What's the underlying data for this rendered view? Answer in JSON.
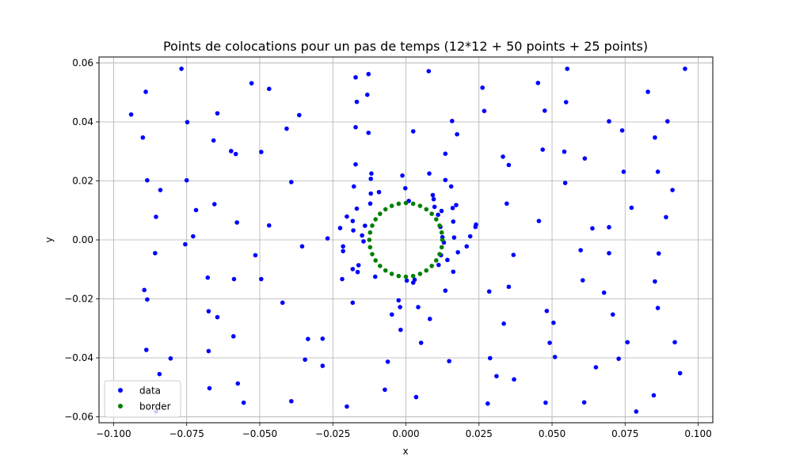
{
  "chart_data": {
    "type": "scatter",
    "title": "Points de colocations pour un pas de temps (12*12 + 50 points + 25 points)",
    "xlabel": "x",
    "ylabel": "y",
    "xlim": [
      -0.105,
      0.105
    ],
    "ylim": [
      -0.062,
      0.062
    ],
    "xticks": [
      -0.1,
      -0.075,
      -0.05,
      -0.025,
      0.0,
      0.025,
      0.05,
      0.075,
      0.1
    ],
    "xtick_labels": [
      "−0.100",
      "−0.075",
      "−0.050",
      "−0.025",
      "0.000",
      "0.025",
      "0.050",
      "0.075",
      "0.100"
    ],
    "yticks": [
      -0.06,
      -0.04,
      -0.02,
      0.0,
      0.02,
      0.04,
      0.06
    ],
    "ytick_labels": [
      "−0.06",
      "−0.04",
      "−0.02",
      "0.00",
      "0.02",
      "0.04",
      "0.06"
    ],
    "grid": true,
    "legend_position": "lower left",
    "series": [
      {
        "name": "data",
        "color": "#0000ff",
        "points": [
          [
            -0.094,
            0.0425
          ],
          [
            -0.09,
            0.0347
          ],
          [
            -0.089,
            0.0502
          ],
          [
            -0.0885,
            0.0202
          ],
          [
            -0.084,
            0.0169
          ],
          [
            -0.0855,
            0.0078
          ],
          [
            -0.0858,
            -0.0045
          ],
          [
            -0.0895,
            -0.017
          ],
          [
            -0.0885,
            -0.0202
          ],
          [
            -0.0888,
            -0.0373
          ],
          [
            -0.0843,
            -0.0455
          ],
          [
            -0.0805,
            -0.0402
          ],
          [
            -0.0855,
            -0.0582
          ],
          [
            -0.0768,
            0.058
          ],
          [
            -0.0748,
            0.0399
          ],
          [
            -0.075,
            0.0202
          ],
          [
            -0.0755,
            -0.0015
          ],
          [
            -0.0728,
            0.0012
          ],
          [
            -0.0718,
            0.0101
          ],
          [
            -0.0658,
            0.0337
          ],
          [
            -0.0655,
            0.0121
          ],
          [
            -0.0678,
            -0.0128
          ],
          [
            -0.0675,
            -0.0242
          ],
          [
            -0.0645,
            -0.0262
          ],
          [
            -0.0675,
            -0.0377
          ],
          [
            -0.0672,
            -0.0503
          ],
          [
            -0.0645,
            0.0429
          ],
          [
            -0.0598,
            0.0301
          ],
          [
            -0.0582,
            0.0291
          ],
          [
            -0.0578,
            0.0059
          ],
          [
            -0.0588,
            -0.0133
          ],
          [
            -0.059,
            -0.0327
          ],
          [
            -0.0575,
            -0.0487
          ],
          [
            -0.0555,
            -0.0552
          ],
          [
            -0.0528,
            0.0531
          ],
          [
            -0.0495,
            0.0298
          ],
          [
            -0.0515,
            -0.0052
          ],
          [
            -0.0495,
            -0.0133
          ],
          [
            -0.0468,
            0.0512
          ],
          [
            -0.0468,
            0.0049
          ],
          [
            -0.0422,
            -0.0213
          ],
          [
            -0.0408,
            0.0377
          ],
          [
            -0.0392,
            0.0196
          ],
          [
            -0.0392,
            -0.0547
          ],
          [
            -0.0365,
            0.0423
          ],
          [
            -0.0355,
            -0.0022
          ],
          [
            -0.0335,
            -0.0336
          ],
          [
            -0.0345,
            -0.0406
          ],
          [
            -0.0285,
            -0.0335
          ],
          [
            -0.0285,
            -0.0427
          ],
          [
            -0.0268,
            0.0005
          ],
          [
            -0.0225,
            0.004
          ],
          [
            -0.0215,
            -0.0022
          ],
          [
            -0.0215,
            -0.0038
          ],
          [
            -0.0218,
            -0.0133
          ],
          [
            -0.0202,
            0.0079
          ],
          [
            -0.0202,
            -0.0565
          ],
          [
            -0.0182,
            0.0064
          ],
          [
            -0.018,
            0.0032
          ],
          [
            -0.0182,
            -0.0099
          ],
          [
            -0.0182,
            -0.0213
          ],
          [
            -0.0178,
            0.0181
          ],
          [
            -0.0172,
            0.0551
          ],
          [
            -0.0172,
            0.0382
          ],
          [
            -0.0168,
            0.0468
          ],
          [
            -0.0172,
            0.0256
          ],
          [
            -0.0168,
            0.0106
          ],
          [
            -0.0162,
            -0.0086
          ],
          [
            -0.0165,
            -0.0109
          ],
          [
            -0.015,
            0.0015
          ],
          [
            -0.014,
            0.0048
          ],
          [
            -0.0145,
            -0.0005
          ],
          [
            -0.0128,
            0.0562
          ],
          [
            -0.0132,
            0.0492
          ],
          [
            -0.0128,
            0.0363
          ],
          [
            -0.0118,
            0.0225
          ],
          [
            -0.012,
            0.0207
          ],
          [
            -0.012,
            0.0157
          ],
          [
            -0.0122,
            0.0123
          ],
          [
            -0.0105,
            -0.0125
          ],
          [
            -0.0092,
            0.0162
          ],
          [
            -0.0072,
            -0.0508
          ],
          [
            -0.0062,
            -0.0413
          ],
          [
            -0.0048,
            -0.0253
          ],
          [
            -0.0025,
            -0.0205
          ],
          [
            -0.002,
            -0.0228
          ],
          [
            -0.0018,
            -0.0305
          ],
          [
            -0.0012,
            0.0218
          ],
          [
            -0.0002,
            0.0175
          ],
          [
            0.0003,
            -0.0138
          ],
          [
            0.001,
            0.0132
          ],
          [
            0.0025,
            0.0368
          ],
          [
            0.0025,
            -0.0145
          ],
          [
            0.003,
            -0.0135
          ],
          [
            0.0035,
            -0.0533
          ],
          [
            0.0042,
            -0.0228
          ],
          [
            0.0052,
            -0.0349
          ],
          [
            0.0078,
            0.0572
          ],
          [
            0.008,
            0.0225
          ],
          [
            0.0082,
            -0.0268
          ],
          [
            0.0092,
            0.0152
          ],
          [
            0.0095,
            0.0138
          ],
          [
            0.0098,
            0.0112
          ],
          [
            0.011,
            0.0085
          ],
          [
            0.0112,
            -0.0085
          ],
          [
            0.0118,
            0.0044
          ],
          [
            0.012,
            -0.0052
          ],
          [
            0.0122,
            0.0098
          ],
          [
            0.0125,
            0.0009
          ],
          [
            0.013,
            -0.0009
          ],
          [
            0.0135,
            0.0292
          ],
          [
            0.0135,
            0.0203
          ],
          [
            0.0135,
            -0.0172
          ],
          [
            0.0142,
            -0.0068
          ],
          [
            0.0148,
            -0.0411
          ],
          [
            0.0155,
            0.0181
          ],
          [
            0.0158,
            0.0403
          ],
          [
            0.016,
            0.0108
          ],
          [
            0.0162,
            -0.0108
          ],
          [
            0.0162,
            0.0062
          ],
          [
            0.0165,
            0.0008
          ],
          [
            0.0172,
            0.0118
          ],
          [
            0.0175,
            0.0358
          ],
          [
            0.0178,
            -0.0042
          ],
          [
            0.0208,
            -0.0022
          ],
          [
            0.022,
            0.0012
          ],
          [
            0.0238,
            0.0044
          ],
          [
            0.024,
            0.0052
          ],
          [
            0.0262,
            0.0516
          ],
          [
            0.0268,
            0.0437
          ],
          [
            0.028,
            -0.0555
          ],
          [
            0.0285,
            -0.0175
          ],
          [
            0.0288,
            -0.0401
          ],
          [
            0.031,
            -0.0462
          ],
          [
            0.0332,
            0.0282
          ],
          [
            0.0335,
            -0.0284
          ],
          [
            0.0345,
            0.0123
          ],
          [
            0.0352,
            0.0254
          ],
          [
            0.0352,
            -0.0159
          ],
          [
            0.0368,
            -0.0051
          ],
          [
            0.037,
            -0.0473
          ],
          [
            0.0452,
            0.0532
          ],
          [
            0.0455,
            0.0064
          ],
          [
            0.0468,
            0.0306
          ],
          [
            0.0475,
            0.0438
          ],
          [
            0.0478,
            -0.0552
          ],
          [
            0.0482,
            -0.0241
          ],
          [
            0.0492,
            -0.0349
          ],
          [
            0.0505,
            -0.0281
          ],
          [
            0.051,
            -0.0397
          ],
          [
            0.0542,
            0.0299
          ],
          [
            0.0545,
            0.0193
          ],
          [
            0.0548,
            0.0467
          ],
          [
            0.0552,
            0.058
          ],
          [
            0.0598,
            -0.0035
          ],
          [
            0.0605,
            -0.0137
          ],
          [
            0.0612,
            0.0276
          ],
          [
            0.061,
            -0.0551
          ],
          [
            0.0638,
            0.0039
          ],
          [
            0.065,
            -0.0432
          ],
          [
            0.0678,
            -0.0179
          ],
          [
            0.0695,
            0.0402
          ],
          [
            0.0695,
            0.0043
          ],
          [
            0.0695,
            -0.0045
          ],
          [
            0.0708,
            -0.0253
          ],
          [
            0.0728,
            -0.0403
          ],
          [
            0.074,
            0.0371
          ],
          [
            0.0745,
            0.0231
          ],
          [
            0.0758,
            -0.0347
          ],
          [
            0.0772,
            0.0109
          ],
          [
            0.0788,
            -0.0582
          ],
          [
            0.0828,
            0.0502
          ],
          [
            0.0848,
            -0.0527
          ],
          [
            0.0852,
            0.0347
          ],
          [
            0.0852,
            -0.0141
          ],
          [
            0.0862,
            0.0231
          ],
          [
            0.0862,
            -0.0231
          ],
          [
            0.0865,
            -0.0046
          ],
          [
            0.089,
            0.0077
          ],
          [
            0.0895,
            0.0402
          ],
          [
            0.0912,
            0.0169
          ],
          [
            0.092,
            -0.0347
          ],
          [
            0.0938,
            -0.0452
          ],
          [
            0.0955,
            0.058
          ]
        ]
      },
      {
        "name": "border",
        "color": "#008000",
        "points": [
          [
            0.0125,
            0.0
          ],
          [
            0.01225,
            0.00249
          ],
          [
            0.01153,
            0.00484
          ],
          [
            0.01038,
            0.00697
          ],
          [
            0.00885,
            0.00883
          ],
          [
            0.00698,
            0.01037
          ],
          [
            0.00484,
            0.01152
          ],
          [
            0.00248,
            0.01225
          ],
          [
            0.0,
            0.0125
          ],
          [
            -0.00248,
            0.01225
          ],
          [
            -0.00484,
            0.01152
          ],
          [
            -0.00698,
            0.01037
          ],
          [
            -0.00885,
            0.00883
          ],
          [
            -0.01038,
            0.00697
          ],
          [
            -0.01153,
            0.00484
          ],
          [
            -0.01225,
            0.00249
          ],
          [
            -0.0125,
            0.0
          ],
          [
            -0.01225,
            -0.00249
          ],
          [
            -0.01153,
            -0.00484
          ],
          [
            -0.01038,
            -0.00697
          ],
          [
            -0.00885,
            -0.00883
          ],
          [
            -0.00698,
            -0.01037
          ],
          [
            -0.00484,
            -0.01152
          ],
          [
            -0.00248,
            -0.01225
          ],
          [
            0.0,
            -0.0125
          ],
          [
            0.00248,
            -0.01225
          ],
          [
            0.00484,
            -0.01152
          ],
          [
            0.00698,
            -0.01037
          ],
          [
            0.00885,
            -0.00883
          ],
          [
            0.01038,
            -0.00697
          ],
          [
            0.01153,
            -0.00484
          ],
          [
            0.01225,
            -0.00249
          ]
        ]
      }
    ]
  }
}
